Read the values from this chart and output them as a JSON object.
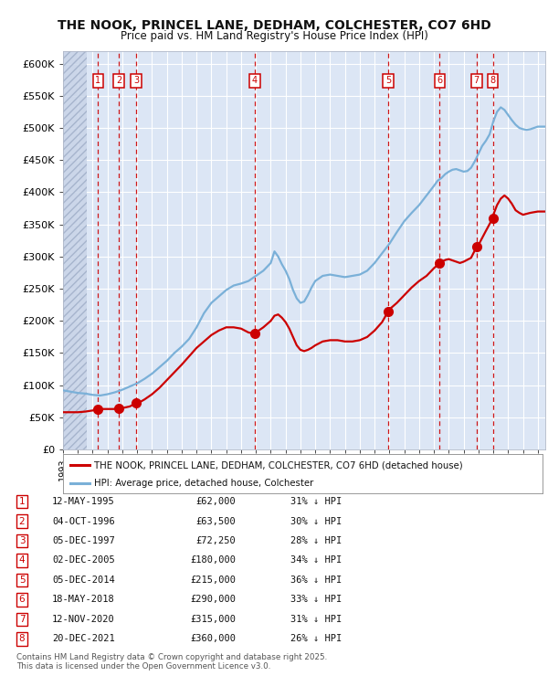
{
  "title": "THE NOOK, PRINCEL LANE, DEDHAM, COLCHESTER, CO7 6HD",
  "subtitle": "Price paid vs. HM Land Registry's House Price Index (HPI)",
  "ylim": [
    0,
    620000
  ],
  "yticks": [
    0,
    50000,
    100000,
    150000,
    200000,
    250000,
    300000,
    350000,
    400000,
    450000,
    500000,
    550000,
    600000
  ],
  "ytick_labels": [
    "£0",
    "£50K",
    "£100K",
    "£150K",
    "£200K",
    "£250K",
    "£300K",
    "£350K",
    "£400K",
    "£450K",
    "£500K",
    "£550K",
    "£600K"
  ],
  "fig_bg": "#ffffff",
  "plot_bg": "#dce6f5",
  "grid_color": "#ffffff",
  "sale_color": "#cc0000",
  "hpi_color": "#7ab0d8",
  "xmin": 1993.0,
  "xmax": 2025.5,
  "hatch_end": 1994.6,
  "transactions": [
    {
      "label": "1",
      "date": "12-MAY-1995",
      "price": 62000,
      "pct": "31%",
      "x": 1995.36
    },
    {
      "label": "2",
      "date": "04-OCT-1996",
      "price": 63500,
      "pct": "30%",
      "x": 1996.75
    },
    {
      "label": "3",
      "date": "05-DEC-1997",
      "price": 72250,
      "pct": "28%",
      "x": 1997.92
    },
    {
      "label": "4",
      "date": "02-DEC-2005",
      "price": 180000,
      "pct": "34%",
      "x": 2005.92
    },
    {
      "label": "5",
      "date": "05-DEC-2014",
      "price": 215000,
      "pct": "36%",
      "x": 2014.92
    },
    {
      "label": "6",
      "date": "18-MAY-2018",
      "price": 290000,
      "pct": "33%",
      "x": 2018.38
    },
    {
      "label": "7",
      "date": "12-NOV-2020",
      "price": 315000,
      "pct": "31%",
      "x": 2020.87
    },
    {
      "label": "8",
      "date": "20-DEC-2021",
      "price": 360000,
      "pct": "26%",
      "x": 2021.97
    }
  ],
  "legend_line1": "THE NOOK, PRINCEL LANE, DEDHAM, COLCHESTER, CO7 6HD (detached house)",
  "legend_line2": "HPI: Average price, detached house, Colchester",
  "footer": "Contains HM Land Registry data © Crown copyright and database right 2025.\nThis data is licensed under the Open Government Licence v3.0.",
  "hpi_curve": [
    [
      1993.0,
      92000
    ],
    [
      1993.5,
      90000
    ],
    [
      1994.0,
      88000
    ],
    [
      1994.5,
      87000
    ],
    [
      1995.0,
      85000
    ],
    [
      1995.5,
      84000
    ],
    [
      1996.0,
      86000
    ],
    [
      1996.5,
      89000
    ],
    [
      1997.0,
      93000
    ],
    [
      1997.5,
      98000
    ],
    [
      1998.0,
      103000
    ],
    [
      1998.5,
      110000
    ],
    [
      1999.0,
      118000
    ],
    [
      1999.5,
      128000
    ],
    [
      2000.0,
      138000
    ],
    [
      2000.5,
      150000
    ],
    [
      2001.0,
      160000
    ],
    [
      2001.5,
      172000
    ],
    [
      2002.0,
      190000
    ],
    [
      2002.5,
      212000
    ],
    [
      2003.0,
      228000
    ],
    [
      2003.5,
      238000
    ],
    [
      2004.0,
      248000
    ],
    [
      2004.5,
      255000
    ],
    [
      2005.0,
      258000
    ],
    [
      2005.5,
      262000
    ],
    [
      2006.0,
      270000
    ],
    [
      2006.5,
      278000
    ],
    [
      2007.0,
      290000
    ],
    [
      2007.25,
      308000
    ],
    [
      2007.5,
      300000
    ],
    [
      2007.75,
      288000
    ],
    [
      2008.0,
      278000
    ],
    [
      2008.25,
      265000
    ],
    [
      2008.5,
      248000
    ],
    [
      2008.75,
      235000
    ],
    [
      2009.0,
      228000
    ],
    [
      2009.25,
      230000
    ],
    [
      2009.5,
      240000
    ],
    [
      2009.75,
      252000
    ],
    [
      2010.0,
      262000
    ],
    [
      2010.5,
      270000
    ],
    [
      2011.0,
      272000
    ],
    [
      2011.5,
      270000
    ],
    [
      2012.0,
      268000
    ],
    [
      2012.5,
      270000
    ],
    [
      2013.0,
      272000
    ],
    [
      2013.5,
      278000
    ],
    [
      2014.0,
      290000
    ],
    [
      2014.5,
      305000
    ],
    [
      2015.0,
      320000
    ],
    [
      2015.5,
      338000
    ],
    [
      2016.0,
      355000
    ],
    [
      2016.5,
      368000
    ],
    [
      2017.0,
      380000
    ],
    [
      2017.5,
      395000
    ],
    [
      2018.0,
      410000
    ],
    [
      2018.25,
      418000
    ],
    [
      2018.5,
      422000
    ],
    [
      2018.75,
      428000
    ],
    [
      2019.0,
      432000
    ],
    [
      2019.25,
      435000
    ],
    [
      2019.5,
      436000
    ],
    [
      2019.75,
      434000
    ],
    [
      2020.0,
      432000
    ],
    [
      2020.25,
      433000
    ],
    [
      2020.5,
      438000
    ],
    [
      2020.75,
      448000
    ],
    [
      2021.0,
      460000
    ],
    [
      2021.25,
      472000
    ],
    [
      2021.5,
      480000
    ],
    [
      2021.75,
      490000
    ],
    [
      2022.0,
      510000
    ],
    [
      2022.25,
      525000
    ],
    [
      2022.5,
      532000
    ],
    [
      2022.75,
      528000
    ],
    [
      2023.0,
      520000
    ],
    [
      2023.25,
      512000
    ],
    [
      2023.5,
      505000
    ],
    [
      2023.75,
      500000
    ],
    [
      2024.0,
      498000
    ],
    [
      2024.25,
      497000
    ],
    [
      2024.5,
      498000
    ],
    [
      2024.75,
      500000
    ],
    [
      2025.0,
      502000
    ],
    [
      2025.5,
      502000
    ]
  ],
  "sale_curve": [
    [
      1993.0,
      58000
    ],
    [
      1994.0,
      58000
    ],
    [
      1994.5,
      59000
    ],
    [
      1995.36,
      62000
    ],
    [
      1995.6,
      63000
    ],
    [
      1996.0,
      63000
    ],
    [
      1996.4,
      63000
    ],
    [
      1996.75,
      63500
    ],
    [
      1997.0,
      64500
    ],
    [
      1997.5,
      67000
    ],
    [
      1997.92,
      72250
    ],
    [
      1998.2,
      74000
    ],
    [
      1998.5,
      78000
    ],
    [
      1999.0,
      86000
    ],
    [
      1999.5,
      96000
    ],
    [
      2000.0,
      108000
    ],
    [
      2000.5,
      120000
    ],
    [
      2001.0,
      132000
    ],
    [
      2001.5,
      145000
    ],
    [
      2002.0,
      158000
    ],
    [
      2002.5,
      168000
    ],
    [
      2003.0,
      178000
    ],
    [
      2003.5,
      185000
    ],
    [
      2004.0,
      190000
    ],
    [
      2004.5,
      190000
    ],
    [
      2005.0,
      188000
    ],
    [
      2005.5,
      182000
    ],
    [
      2005.92,
      180000
    ],
    [
      2006.0,
      182000
    ],
    [
      2006.25,
      186000
    ],
    [
      2006.5,
      190000
    ],
    [
      2007.0,
      200000
    ],
    [
      2007.25,
      208000
    ],
    [
      2007.5,
      210000
    ],
    [
      2007.75,
      205000
    ],
    [
      2008.0,
      198000
    ],
    [
      2008.25,
      188000
    ],
    [
      2008.5,
      175000
    ],
    [
      2008.75,
      162000
    ],
    [
      2009.0,
      155000
    ],
    [
      2009.25,
      153000
    ],
    [
      2009.5,
      155000
    ],
    [
      2009.75,
      158000
    ],
    [
      2010.0,
      162000
    ],
    [
      2010.5,
      168000
    ],
    [
      2011.0,
      170000
    ],
    [
      2011.5,
      170000
    ],
    [
      2012.0,
      168000
    ],
    [
      2012.5,
      168000
    ],
    [
      2013.0,
      170000
    ],
    [
      2013.5,
      175000
    ],
    [
      2014.0,
      185000
    ],
    [
      2014.5,
      198000
    ],
    [
      2014.92,
      215000
    ],
    [
      2015.0,
      218000
    ],
    [
      2015.5,
      228000
    ],
    [
      2016.0,
      240000
    ],
    [
      2016.5,
      252000
    ],
    [
      2017.0,
      262000
    ],
    [
      2017.5,
      270000
    ],
    [
      2018.0,
      282000
    ],
    [
      2018.38,
      290000
    ],
    [
      2018.6,
      293000
    ],
    [
      2018.8,
      295000
    ],
    [
      2019.0,
      296000
    ],
    [
      2019.5,
      292000
    ],
    [
      2019.75,
      290000
    ],
    [
      2020.0,
      292000
    ],
    [
      2020.5,
      298000
    ],
    [
      2020.87,
      315000
    ],
    [
      2021.0,
      318000
    ],
    [
      2021.5,
      340000
    ],
    [
      2021.97,
      360000
    ],
    [
      2022.0,
      365000
    ],
    [
      2022.25,
      380000
    ],
    [
      2022.5,
      390000
    ],
    [
      2022.75,
      395000
    ],
    [
      2023.0,
      390000
    ],
    [
      2023.25,
      382000
    ],
    [
      2023.5,
      372000
    ],
    [
      2023.75,
      368000
    ],
    [
      2024.0,
      365000
    ],
    [
      2024.5,
      368000
    ],
    [
      2025.0,
      370000
    ],
    [
      2025.5,
      370000
    ]
  ]
}
